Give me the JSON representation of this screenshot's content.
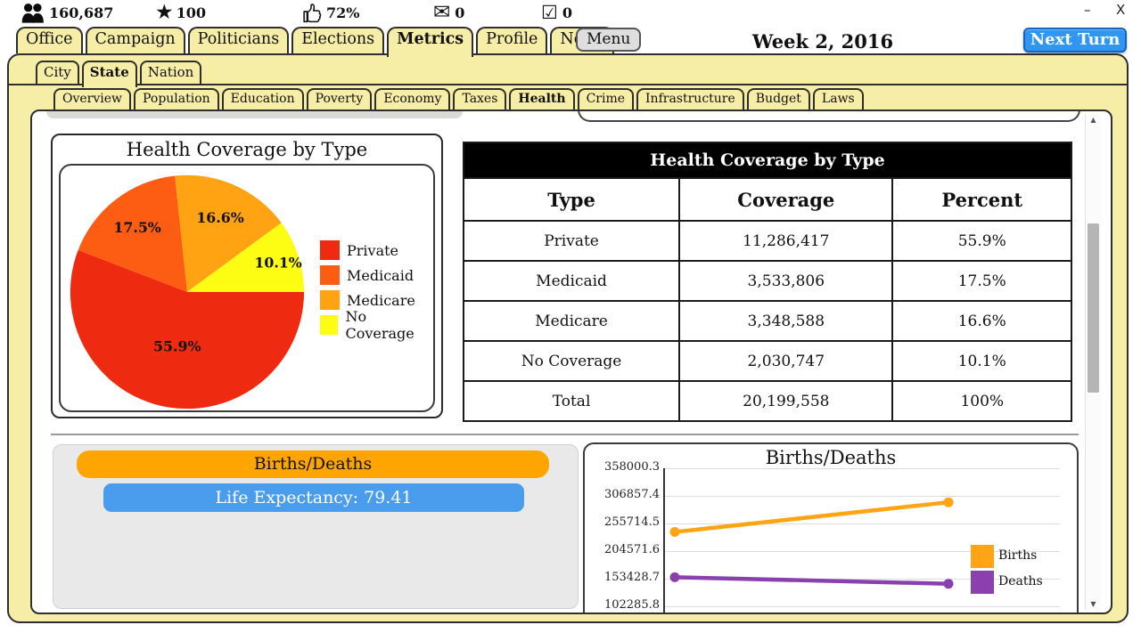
{
  "window": {
    "minimize": "–",
    "close": "X"
  },
  "stats": {
    "population": "160,687",
    "approval_stars": "100",
    "approval_pct": "72%",
    "messages": "0",
    "tasks": "0"
  },
  "nav": {
    "tabs": [
      "Office",
      "Campaign",
      "Politicians",
      "Elections",
      "Metrics",
      "Profile",
      "News"
    ],
    "active": "Metrics",
    "menu_label": "Menu",
    "week_label": "Week 2, 2016",
    "next_turn_label": "Next Turn"
  },
  "subnav": {
    "tabs": [
      "City",
      "State",
      "Nation"
    ],
    "active": "State"
  },
  "metric_tabs": {
    "tabs": [
      "Overview",
      "Population",
      "Education",
      "Poverty",
      "Economy",
      "Taxes",
      "Health",
      "Crime",
      "Infrastructure",
      "Budget",
      "Laws"
    ],
    "active": "Health"
  },
  "table": {
    "title": "Health Coverage by Type",
    "columns": [
      "Type",
      "Coverage",
      "Percent"
    ],
    "rows": [
      [
        "Private",
        "11,286,417",
        "55.9%"
      ],
      [
        "Medicaid",
        "3,533,806",
        "17.5%"
      ],
      [
        "Medicare",
        "3,348,588",
        "16.6%"
      ],
      [
        "No Coverage",
        "2,030,747",
        "10.1%"
      ],
      [
        "Total",
        "20,199,558",
        "100%"
      ]
    ]
  },
  "buttons": {
    "births_deaths": "Births/Deaths",
    "life_expectancy": "Life Expectancy: 79.41"
  },
  "colors": {
    "tab_yellow": "#f6eda6",
    "next_turn_blue": "#2f97f2",
    "life_expectancy_blue": "#4a9ded",
    "births_deaths_orange": "#ffa502",
    "table_header_bg": "#000000",
    "pie_private": "#ee2b11",
    "pie_medicaid": "#fd5c13",
    "pie_medicare": "#ffa313",
    "pie_no_coverage": "#fdfd13",
    "line_births": "#ffa513",
    "line_deaths": "#8a41ae"
  },
  "chart_data": [
    {
      "type": "pie",
      "title": "Health Coverage by Type",
      "labels": [
        "Private",
        "Medicaid",
        "Medicare",
        "No Coverage"
      ],
      "values": [
        55.9,
        17.5,
        16.6,
        10.1
      ],
      "value_suffix": "%",
      "colors": [
        "#ee2b11",
        "#fd5c13",
        "#ffa313",
        "#fdfd13"
      ],
      "legend_position": "right",
      "start_angle_deg": 0,
      "direction": "clockwise"
    },
    {
      "type": "line",
      "title": "Births/Deaths",
      "y_ticks": [
        358000.3,
        306857.4,
        255714.5,
        204571.6,
        153428.7,
        102285.8
      ],
      "x_labels": [
        "",
        ""
      ],
      "series": [
        {
          "name": "Births",
          "color": "#ffa513",
          "values": [
            240000,
            295000
          ]
        },
        {
          "name": "Deaths",
          "color": "#8a41ae",
          "values": [
            156000,
            144000
          ]
        }
      ],
      "grid": true,
      "legend_position": "right"
    }
  ]
}
